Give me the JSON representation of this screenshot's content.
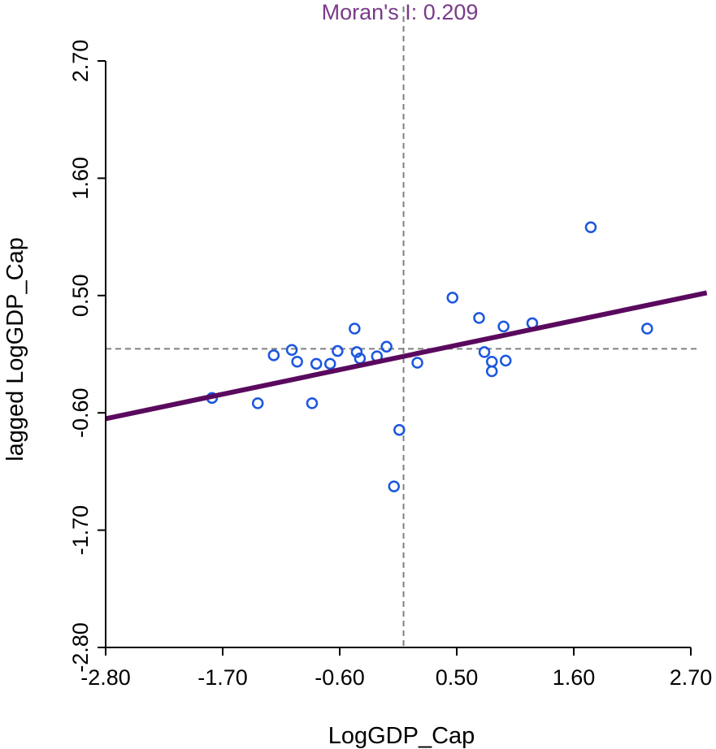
{
  "chart_data": {
    "type": "scatter",
    "title": "Moran's I: 0.209",
    "xlabel": "LogGDP_Cap",
    "ylabel": "lagged LogGDP_Cap",
    "xlim": [
      -2.8,
      2.7
    ],
    "ylim": [
      -2.8,
      2.7
    ],
    "xticks": [
      "-2.80",
      "-1.70",
      "-0.60",
      "0.50",
      "1.60",
      "2.70"
    ],
    "yticks": [
      "-2.80",
      "-1.70",
      "-0.60",
      "0.50",
      "1.60",
      "2.70"
    ],
    "grid": false,
    "reference_lines": {
      "x": 0,
      "y": 0,
      "style": "dashed"
    },
    "regression": {
      "slope": 0.209,
      "intercept": -0.07
    },
    "points": [
      [
        -1.8,
        -0.46
      ],
      [
        -1.37,
        -0.51
      ],
      [
        -1.22,
        -0.06
      ],
      [
        -1.05,
        -0.01
      ],
      [
        -1.0,
        -0.12
      ],
      [
        -0.86,
        -0.51
      ],
      [
        -0.82,
        -0.14
      ],
      [
        -0.69,
        -0.14
      ],
      [
        -0.62,
        -0.02
      ],
      [
        -0.46,
        0.19
      ],
      [
        -0.44,
        -0.03
      ],
      [
        -0.41,
        -0.09
      ],
      [
        -0.25,
        -0.07
      ],
      [
        -0.16,
        0.02
      ],
      [
        0.13,
        -0.13
      ],
      [
        1.76,
        1.14
      ],
      [
        0.46,
        0.48
      ],
      [
        0.71,
        0.29
      ],
      [
        0.94,
        0.21
      ],
      [
        1.21,
        0.24
      ],
      [
        2.29,
        0.19
      ],
      [
        0.76,
        -0.03
      ],
      [
        0.83,
        -0.12
      ],
      [
        0.83,
        -0.21
      ],
      [
        0.96,
        -0.11
      ],
      [
        -0.04,
        -0.76
      ],
      [
        -0.09,
        -1.29
      ]
    ],
    "colors": {
      "points": "#1a56e0",
      "regression": "#5a0a5e",
      "title": "#7a3a8a",
      "reference": "#808080"
    }
  }
}
